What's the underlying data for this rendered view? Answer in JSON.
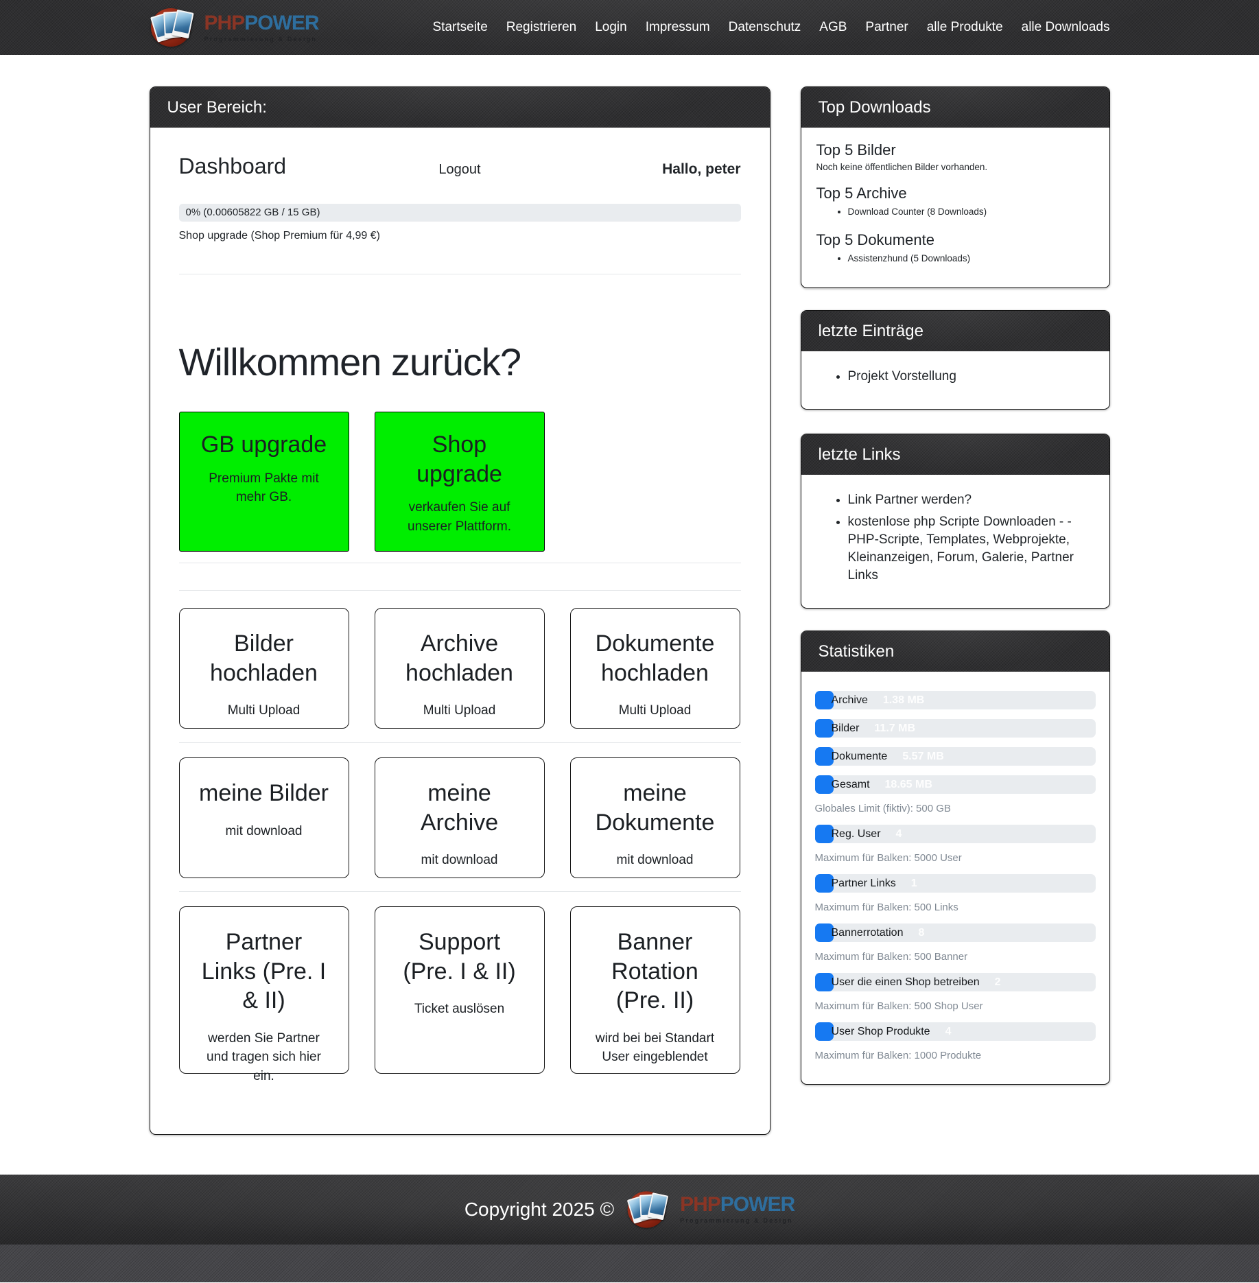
{
  "brand": {
    "php": "PHP",
    "power": "POWER",
    "tagline": "Programmierung & Design"
  },
  "nav": {
    "items": [
      "Startseite",
      "Registrieren",
      "Login",
      "Impressum",
      "Datenschutz",
      "AGB",
      "Partner",
      "alle Produkte",
      "alle Downloads"
    ]
  },
  "user_panel": {
    "header": "User Bereich:",
    "dashboard_title": "Dashboard",
    "logout_label": "Logout",
    "greeting": "Hallo, peter",
    "storage_text": "0% (0.00605822 GB / 15 GB)",
    "shop_upgrade_link": "Shop upgrade (Shop Premium für 4,99 €)",
    "welcome_heading": "Willkommen zurück?",
    "upgrades": [
      {
        "title": "GB upgrade",
        "subtitle": "Premium Pakte mit mehr GB."
      },
      {
        "title": "Shop upgrade",
        "subtitle": "verkaufen Sie auf unserer Plattform."
      }
    ],
    "cards": [
      {
        "title": "Bilder hochladen",
        "subtitle": "Multi Upload"
      },
      {
        "title": "Archive hochladen",
        "subtitle": "Multi Upload"
      },
      {
        "title": "Dokumente hochladen",
        "subtitle": "Multi Upload"
      },
      {
        "title": "meine Bilder",
        "subtitle": "mit download"
      },
      {
        "title": "meine Archive",
        "subtitle": "mit download"
      },
      {
        "title": "meine Dokumente",
        "subtitle": "mit download"
      },
      {
        "title": "Partner Links (Pre. I & II)",
        "subtitle": "werden Sie Partner und tragen sich hier ein."
      },
      {
        "title": "Support (Pre. I & II)",
        "subtitle": "Ticket auslösen"
      },
      {
        "title": "Banner Rotation (Pre. II)",
        "subtitle": "wird bei bei Standart User eingeblendet"
      }
    ]
  },
  "top_downloads": {
    "header": "Top Downloads",
    "bilder_title": "Top 5 Bilder",
    "bilder_empty": "Noch keine öffentlichen Bilder vorhanden.",
    "archive_title": "Top 5 Archive",
    "archive_items": [
      "Download Counter (8 Downloads)"
    ],
    "dokumente_title": "Top 5 Dokumente",
    "dokumente_items": [
      "Assistenzhund (5 Downloads)"
    ]
  },
  "latest_entries": {
    "header": "letzte Einträge",
    "items": [
      "Projekt Vorstellung"
    ]
  },
  "latest_links": {
    "header": "letzte Links",
    "items": [
      "Link Partner werden?",
      "kostenlose php Scripte Downloaden - - PHP-Scripte, Templates, Webprojekte, Kleinanzeigen, Forum, Galerie, Partner Links"
    ]
  },
  "statistics": {
    "header": "Statistiken",
    "bars": [
      {
        "label": "Archive",
        "value": "1.38 MB"
      },
      {
        "label": "Bilder",
        "value": "11.7 MB"
      },
      {
        "label": "Dokumente",
        "value": "5.57 MB"
      },
      {
        "label": "Gesamt",
        "value": "18.65 MB",
        "caption": "Globales Limit (fiktiv): 500 GB"
      },
      {
        "label": "Reg. User",
        "value": "4",
        "caption": "Maximum für Balken: 5000 User"
      },
      {
        "label": "Partner Links",
        "value": "1",
        "caption": "Maximum für Balken: 500 Links"
      },
      {
        "label": "Bannerrotation",
        "value": "8",
        "caption": "Maximum für Balken: 500 Banner"
      },
      {
        "label": "User die einen Shop betreiben",
        "value": "2",
        "caption": "Maximum für Balken: 500 Shop User"
      },
      {
        "label": "User Shop Produkte",
        "value": "4",
        "caption": "Maximum für Balken: 1000 Produkte"
      }
    ]
  },
  "footer": {
    "copyright": "Copyright 2025 ©"
  },
  "colors": {
    "upgrade_green": "#00ee00",
    "stat_bar_blue": "#1679f2",
    "brand_red": "#8a3525",
    "brand_blue": "#2e6e9e",
    "bar_track_gray": "#e9ecef"
  }
}
